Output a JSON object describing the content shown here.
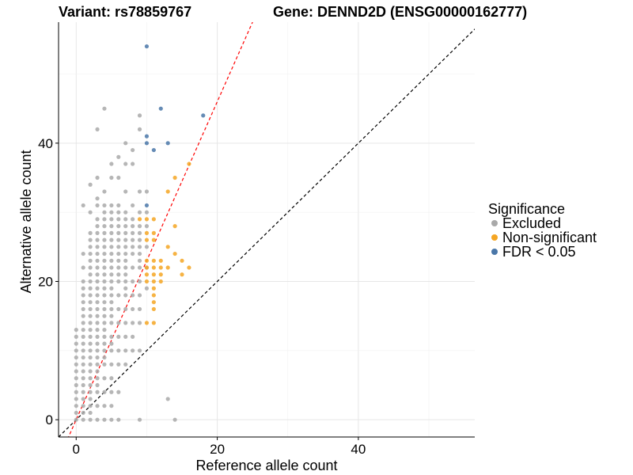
{
  "chart_data": {
    "type": "scatter",
    "title_left": "Variant: rs78859767",
    "title_right": "Gene: DENND2D (ENSG00000162777)",
    "xlabel": "Reference allele count",
    "ylabel": "Alternative allele count",
    "xlim": [
      -2.5,
      56.5
    ],
    "ylim": [
      -2.5,
      57.5
    ],
    "x_ticks": [
      0,
      20,
      40
    ],
    "y_ticks": [
      0,
      20,
      40
    ],
    "grid": true,
    "legend": {
      "title": "Significance",
      "position": "right",
      "entries": [
        {
          "label": "Excluded",
          "color": "#a9a9a9"
        },
        {
          "label": "Non-significant",
          "color": "#f5a623"
        },
        {
          "label": "FDR < 0.05",
          "color": "#4a77a8"
        }
      ]
    },
    "reference_lines": [
      {
        "name": "identity",
        "slope": 1,
        "intercept": 0,
        "style": "dashed",
        "color": "#000000"
      },
      {
        "name": "fit",
        "slope": 2.3,
        "intercept": 0,
        "style": "dashed",
        "color": "#ff0000"
      }
    ],
    "series": [
      {
        "name": "Excluded",
        "color": "#a9a9a9",
        "points": [
          [
            0,
            0
          ],
          [
            0,
            1
          ],
          [
            0,
            2
          ],
          [
            0,
            3
          ],
          [
            0,
            4
          ],
          [
            0,
            5
          ],
          [
            0,
            6
          ],
          [
            0,
            7
          ],
          [
            0,
            8
          ],
          [
            0,
            9
          ],
          [
            0,
            10
          ],
          [
            0,
            11
          ],
          [
            0,
            12
          ],
          [
            0,
            13
          ],
          [
            1,
            0
          ],
          [
            1,
            1
          ],
          [
            1,
            2
          ],
          [
            1,
            3
          ],
          [
            1,
            4
          ],
          [
            1,
            5
          ],
          [
            1,
            6
          ],
          [
            1,
            7
          ],
          [
            1,
            8
          ],
          [
            1,
            9
          ],
          [
            1,
            10
          ],
          [
            1,
            11
          ],
          [
            1,
            12
          ],
          [
            1,
            13
          ],
          [
            1,
            14
          ],
          [
            1,
            15
          ],
          [
            1,
            16
          ],
          [
            1,
            17
          ],
          [
            1,
            18
          ],
          [
            1,
            19
          ],
          [
            1,
            20
          ],
          [
            1,
            22
          ],
          [
            1,
            24
          ],
          [
            1,
            31
          ],
          [
            2,
            0
          ],
          [
            2,
            1
          ],
          [
            2,
            2
          ],
          [
            2,
            3
          ],
          [
            2,
            4
          ],
          [
            2,
            5
          ],
          [
            2,
            6
          ],
          [
            2,
            7
          ],
          [
            2,
            8
          ],
          [
            2,
            9
          ],
          [
            2,
            10
          ],
          [
            2,
            11
          ],
          [
            2,
            12
          ],
          [
            2,
            13
          ],
          [
            2,
            14
          ],
          [
            2,
            15
          ],
          [
            2,
            16
          ],
          [
            2,
            17
          ],
          [
            2,
            18
          ],
          [
            2,
            19
          ],
          [
            2,
            20
          ],
          [
            2,
            21
          ],
          [
            2,
            22
          ],
          [
            2,
            23
          ],
          [
            2,
            24
          ],
          [
            2,
            25
          ],
          [
            2,
            26
          ],
          [
            2,
            27
          ],
          [
            2,
            30
          ],
          [
            2,
            34
          ],
          [
            3,
            0
          ],
          [
            3,
            2
          ],
          [
            3,
            4
          ],
          [
            3,
            5
          ],
          [
            3,
            6
          ],
          [
            3,
            7
          ],
          [
            3,
            8
          ],
          [
            3,
            9
          ],
          [
            3,
            10
          ],
          [
            3,
            11
          ],
          [
            3,
            12
          ],
          [
            3,
            13
          ],
          [
            3,
            14
          ],
          [
            3,
            15
          ],
          [
            3,
            16
          ],
          [
            3,
            17
          ],
          [
            3,
            18
          ],
          [
            3,
            19
          ],
          [
            3,
            20
          ],
          [
            3,
            21
          ],
          [
            3,
            22
          ],
          [
            3,
            23
          ],
          [
            3,
            24
          ],
          [
            3,
            25
          ],
          [
            3,
            26
          ],
          [
            3,
            27
          ],
          [
            3,
            28
          ],
          [
            3,
            29
          ],
          [
            3,
            31
          ],
          [
            3,
            32
          ],
          [
            3,
            35
          ],
          [
            3,
            42
          ],
          [
            4,
            0
          ],
          [
            4,
            2
          ],
          [
            4,
            4
          ],
          [
            4,
            6
          ],
          [
            4,
            8
          ],
          [
            4,
            9
          ],
          [
            4,
            10
          ],
          [
            4,
            11
          ],
          [
            4,
            12
          ],
          [
            4,
            13
          ],
          [
            4,
            14
          ],
          [
            4,
            15
          ],
          [
            4,
            16
          ],
          [
            4,
            17
          ],
          [
            4,
            18
          ],
          [
            4,
            19
          ],
          [
            4,
            20
          ],
          [
            4,
            21
          ],
          [
            4,
            22
          ],
          [
            4,
            23
          ],
          [
            4,
            24
          ],
          [
            4,
            25
          ],
          [
            4,
            26
          ],
          [
            4,
            27
          ],
          [
            4,
            28
          ],
          [
            4,
            29
          ],
          [
            4,
            30
          ],
          [
            4,
            31
          ],
          [
            4,
            33
          ],
          [
            4,
            45
          ],
          [
            5,
            0
          ],
          [
            5,
            2
          ],
          [
            5,
            4
          ],
          [
            5,
            6
          ],
          [
            5,
            8
          ],
          [
            5,
            10
          ],
          [
            5,
            11
          ],
          [
            5,
            12
          ],
          [
            5,
            14
          ],
          [
            5,
            15
          ],
          [
            5,
            16
          ],
          [
            5,
            17
          ],
          [
            5,
            18
          ],
          [
            5,
            19
          ],
          [
            5,
            20
          ],
          [
            5,
            21
          ],
          [
            5,
            22
          ],
          [
            5,
            23
          ],
          [
            5,
            24
          ],
          [
            5,
            25
          ],
          [
            5,
            26
          ],
          [
            5,
            27
          ],
          [
            5,
            28
          ],
          [
            5,
            29
          ],
          [
            5,
            30
          ],
          [
            5,
            31
          ],
          [
            5,
            35
          ],
          [
            5,
            37
          ],
          [
            6,
            0
          ],
          [
            6,
            4
          ],
          [
            6,
            8
          ],
          [
            6,
            10
          ],
          [
            6,
            12
          ],
          [
            6,
            14
          ],
          [
            6,
            16
          ],
          [
            6,
            18
          ],
          [
            6,
            20
          ],
          [
            6,
            21
          ],
          [
            6,
            22
          ],
          [
            6,
            23
          ],
          [
            6,
            24
          ],
          [
            6,
            25
          ],
          [
            6,
            26
          ],
          [
            6,
            27
          ],
          [
            6,
            28
          ],
          [
            6,
            29
          ],
          [
            6,
            30
          ],
          [
            6,
            31
          ],
          [
            6,
            35
          ],
          [
            6,
            38
          ],
          [
            7,
            8
          ],
          [
            7,
            10
          ],
          [
            7,
            12
          ],
          [
            7,
            14
          ],
          [
            7,
            16
          ],
          [
            7,
            18
          ],
          [
            7,
            19
          ],
          [
            7,
            20
          ],
          [
            7,
            21
          ],
          [
            7,
            22
          ],
          [
            7,
            23
          ],
          [
            7,
            24
          ],
          [
            7,
            25
          ],
          [
            7,
            26
          ],
          [
            7,
            27
          ],
          [
            7,
            28
          ],
          [
            7,
            29
          ],
          [
            7,
            30
          ],
          [
            7,
            33
          ],
          [
            7,
            37
          ],
          [
            7,
            40
          ],
          [
            8,
            10
          ],
          [
            8,
            12
          ],
          [
            8,
            14
          ],
          [
            8,
            16
          ],
          [
            8,
            18
          ],
          [
            8,
            20
          ],
          [
            8,
            22
          ],
          [
            8,
            24
          ],
          [
            8,
            25
          ],
          [
            8,
            26
          ],
          [
            8,
            27
          ],
          [
            8,
            28
          ],
          [
            8,
            29
          ],
          [
            8,
            31
          ],
          [
            8,
            37
          ],
          [
            8,
            39
          ],
          [
            9,
            0
          ],
          [
            9,
            10
          ],
          [
            9,
            14
          ],
          [
            9,
            16
          ],
          [
            9,
            18
          ],
          [
            9,
            20
          ],
          [
            9,
            22
          ],
          [
            9,
            23
          ],
          [
            9,
            24
          ],
          [
            9,
            25
          ],
          [
            9,
            26
          ],
          [
            9,
            27
          ],
          [
            9,
            28
          ],
          [
            9,
            30
          ],
          [
            9,
            33
          ],
          [
            9,
            42
          ],
          [
            9,
            44
          ],
          [
            10,
            19
          ],
          [
            10,
            22
          ],
          [
            10,
            25
          ],
          [
            10,
            28
          ],
          [
            10,
            30
          ],
          [
            10,
            33
          ],
          [
            13,
            3
          ],
          [
            14,
            0
          ]
        ]
      },
      {
        "name": "Non-significant",
        "color": "#f5a623",
        "points": [
          [
            9,
            29
          ],
          [
            10,
            29
          ],
          [
            11,
            29
          ],
          [
            10,
            27
          ],
          [
            11,
            27
          ],
          [
            10,
            26
          ],
          [
            11,
            26
          ],
          [
            10,
            23
          ],
          [
            11,
            23
          ],
          [
            10,
            22
          ],
          [
            11,
            22
          ],
          [
            10,
            21
          ],
          [
            11,
            21
          ],
          [
            10,
            20
          ],
          [
            11,
            20
          ],
          [
            12,
            20
          ],
          [
            12,
            21
          ],
          [
            12,
            22
          ],
          [
            12,
            23
          ],
          [
            11,
            19
          ],
          [
            11,
            18
          ],
          [
            11,
            17
          ],
          [
            11,
            16
          ],
          [
            10,
            14
          ],
          [
            11,
            14
          ],
          [
            13,
            33
          ],
          [
            14,
            35
          ],
          [
            16,
            37
          ],
          [
            13,
            25
          ],
          [
            14,
            24
          ],
          [
            14,
            28
          ],
          [
            15,
            23
          ],
          [
            15,
            21
          ],
          [
            16,
            22
          ],
          [
            13,
            22
          ]
        ]
      },
      {
        "name": "FDR < 0.05",
        "color": "#4a77a8",
        "points": [
          [
            10,
            54
          ],
          [
            12,
            45
          ],
          [
            18,
            44
          ],
          [
            10,
            41
          ],
          [
            10,
            40
          ],
          [
            11,
            39
          ],
          [
            13,
            40
          ],
          [
            10,
            31
          ]
        ]
      }
    ]
  }
}
